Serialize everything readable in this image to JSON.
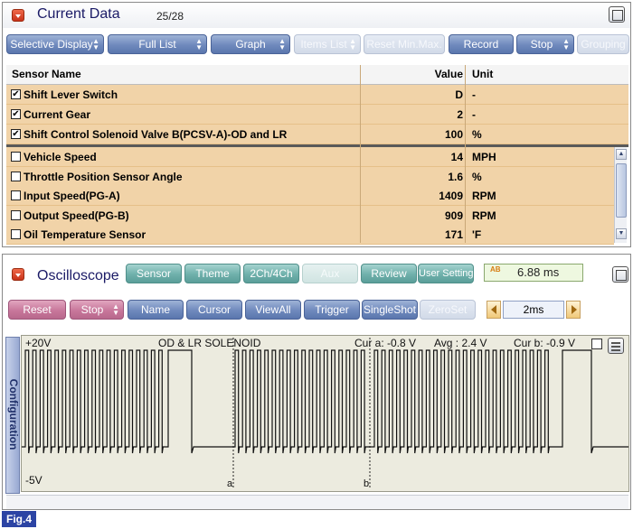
{
  "current_data": {
    "title": "Current Data",
    "counter": "25/28",
    "toolbar": [
      {
        "label": "Selective Display",
        "enabled": true
      },
      {
        "label": "Full List",
        "enabled": true
      },
      {
        "label": "Graph",
        "enabled": true
      },
      {
        "label": "Items List",
        "enabled": false
      },
      {
        "label": "Reset Min.Max.",
        "enabled": false
      },
      {
        "label": "Record",
        "enabled": true
      },
      {
        "label": "Stop",
        "enabled": true
      },
      {
        "label": "Grouping",
        "enabled": false
      }
    ],
    "columns": {
      "sensor": "Sensor Name",
      "value": "Value",
      "unit": "Unit"
    },
    "fixed_rows": [
      {
        "checked": true,
        "name": "Shift Lever Switch",
        "value": "D",
        "unit": "-"
      },
      {
        "checked": true,
        "name": "Current Gear",
        "value": "2",
        "unit": "-"
      },
      {
        "checked": true,
        "name": "Shift Control Solenoid Valve B(PCSV-A)-OD and LR",
        "value": "100",
        "unit": "%"
      }
    ],
    "rows": [
      {
        "checked": false,
        "name": "Vehicle Speed",
        "value": "14",
        "unit": "MPH"
      },
      {
        "checked": false,
        "name": "Throttle Position Sensor Angle",
        "value": "1.6",
        "unit": "%"
      },
      {
        "checked": false,
        "name": "Input Speed(PG-A)",
        "value": "1409",
        "unit": "RPM"
      },
      {
        "checked": false,
        "name": "Output Speed(PG-B)",
        "value": "909",
        "unit": "RPM"
      },
      {
        "checked": false,
        "name": "Oil Temperature Sensor",
        "value": "171",
        "unit": "'F"
      }
    ]
  },
  "oscilloscope": {
    "title": "Oscilloscope",
    "mode_buttons": [
      {
        "label": "Sensor",
        "enabled": true
      },
      {
        "label": "Theme",
        "enabled": true
      },
      {
        "label": "2Ch/4Ch",
        "enabled": true
      },
      {
        "label": "Aux",
        "enabled": false
      },
      {
        "label": "Review",
        "enabled": true
      },
      {
        "label": "User Setting",
        "enabled": true
      }
    ],
    "time_readout": "6.88 ms",
    "time_icon_text": "AB",
    "control_buttons": [
      {
        "label": "Reset",
        "color": "pink",
        "enabled": true
      },
      {
        "label": "Stop",
        "color": "pink",
        "enabled": true
      },
      {
        "label": "Name",
        "color": "blue",
        "enabled": true
      },
      {
        "label": "Cursor",
        "color": "blue",
        "enabled": true
      },
      {
        "label": "ViewAll",
        "color": "blue",
        "enabled": true
      },
      {
        "label": "Trigger",
        "color": "blue",
        "enabled": true
      },
      {
        "label": "SingleShot",
        "color": "blue",
        "enabled": true
      },
      {
        "label": "ZeroSet",
        "color": "blue",
        "enabled": false
      }
    ],
    "time_div": "2ms",
    "config_tab": "Configuration",
    "scope": {
      "top_voltage": "+20V",
      "bottom_voltage": "-5V",
      "channel_name": "OD & LR SOLENOID",
      "cursor_a_label": "Cur a: -0.8 V",
      "avg_label": "Avg : 2.4 V",
      "cursor_b_label": "Cur b: -0.9 V",
      "marker_a": "a",
      "marker_b": "b",
      "trace_color": "#111111",
      "background_color": "#ecebdf"
    }
  },
  "figure_label": "Fig.4"
}
